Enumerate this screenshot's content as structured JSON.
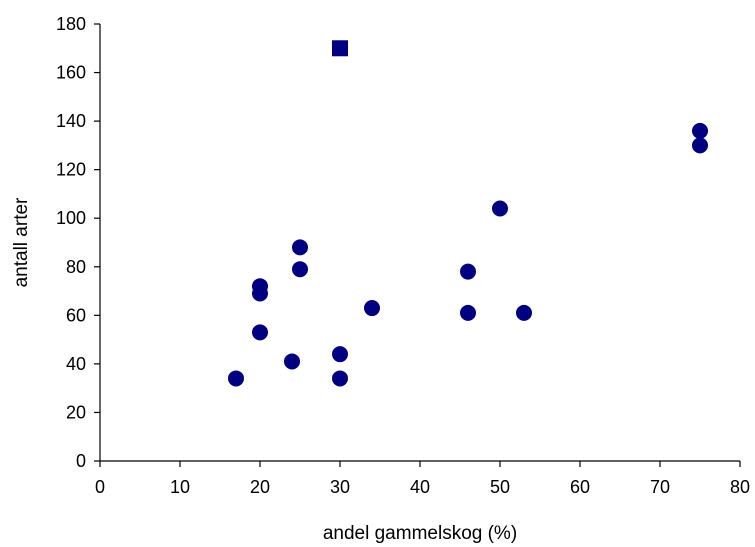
{
  "chart_data": {
    "type": "scatter",
    "xlabel": "andel gammelskog (%)",
    "ylabel": "antall arter",
    "xlim": [
      0,
      80
    ],
    "ylim": [
      0,
      180
    ],
    "xticks": [
      0,
      10,
      20,
      30,
      40,
      50,
      60,
      70,
      80
    ],
    "yticks": [
      0,
      20,
      40,
      60,
      80,
      100,
      120,
      140,
      160,
      180
    ],
    "grid": false,
    "marker_color": "#000080",
    "points": [
      {
        "x": 17,
        "y": 34,
        "marker": "circle"
      },
      {
        "x": 20,
        "y": 72,
        "marker": "circle"
      },
      {
        "x": 20,
        "y": 69,
        "marker": "circle"
      },
      {
        "x": 20,
        "y": 53,
        "marker": "circle"
      },
      {
        "x": 24,
        "y": 41,
        "marker": "circle"
      },
      {
        "x": 25,
        "y": 88,
        "marker": "circle"
      },
      {
        "x": 25,
        "y": 79,
        "marker": "circle"
      },
      {
        "x": 30,
        "y": 170,
        "marker": "square"
      },
      {
        "x": 30,
        "y": 44,
        "marker": "circle"
      },
      {
        "x": 30,
        "y": 34,
        "marker": "circle"
      },
      {
        "x": 34,
        "y": 63,
        "marker": "circle"
      },
      {
        "x": 46,
        "y": 78,
        "marker": "circle"
      },
      {
        "x": 46,
        "y": 61,
        "marker": "circle"
      },
      {
        "x": 50,
        "y": 104,
        "marker": "circle"
      },
      {
        "x": 53,
        "y": 61,
        "marker": "circle"
      },
      {
        "x": 75,
        "y": 136,
        "marker": "circle"
      },
      {
        "x": 75,
        "y": 130,
        "marker": "circle"
      }
    ]
  }
}
